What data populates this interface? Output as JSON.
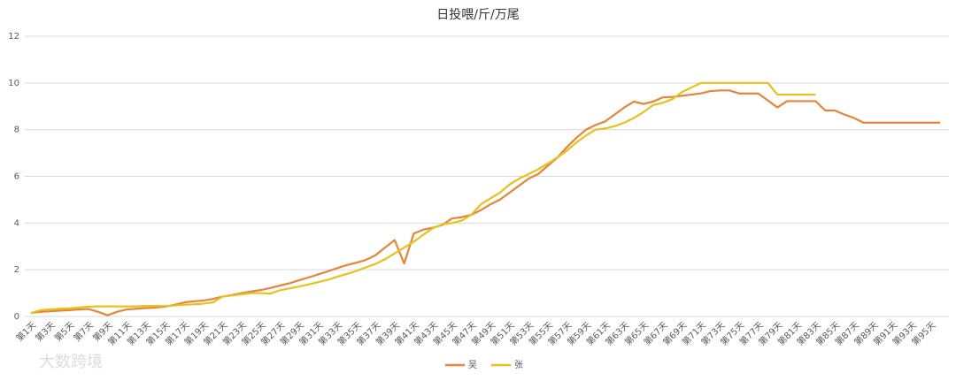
{
  "chart_data": {
    "type": "line",
    "title": "日投喂/斤/万尾",
    "categories": [
      "第1天",
      null,
      "第3天",
      null,
      "第5天",
      null,
      "第7天",
      null,
      "第9天",
      null,
      "第11天",
      null,
      "第13天",
      null,
      "第15天",
      null,
      "第17天",
      null,
      "第19天",
      null,
      "第21天",
      null,
      "第23天",
      null,
      "第25天",
      null,
      "第27天",
      null,
      "第29天",
      null,
      "第31天",
      null,
      "第33天",
      null,
      "第35天",
      null,
      "第37天",
      null,
      "第39天",
      null,
      "第41天",
      null,
      "第43天",
      null,
      "第45天",
      null,
      "第47天",
      null,
      "第49天",
      null,
      "第51天",
      null,
      "第53天",
      null,
      "第55天",
      null,
      "第57天",
      null,
      "第59天",
      null,
      "第61天",
      null,
      "第63天",
      null,
      "第65天",
      null,
      "第67天",
      null,
      "第69天",
      null,
      "第71天",
      null,
      "第73天",
      null,
      "第75天",
      null,
      "第77天",
      null,
      "第79天",
      null,
      "第81天",
      null,
      "第83天",
      null,
      "第85天",
      null,
      "第87天",
      null,
      "第89天",
      null,
      "第91天",
      null,
      "第93天",
      null,
      "第95天",
      null
    ],
    "series": [
      {
        "name": "吴",
        "color": "#e8843a",
        "values": [
          0.15,
          0.2,
          0.22,
          0.25,
          0.27,
          0.3,
          0.32,
          0.2,
          0.05,
          0.2,
          0.3,
          0.33,
          0.36,
          0.38,
          0.42,
          0.5,
          0.6,
          0.65,
          0.68,
          0.75,
          0.85,
          0.92,
          1.0,
          1.07,
          1.13,
          1.22,
          1.32,
          1.42,
          1.55,
          1.67,
          1.8,
          1.93,
          2.07,
          2.2,
          2.3,
          2.42,
          2.62,
          2.95,
          3.27,
          2.27,
          3.55,
          3.72,
          3.8,
          3.92,
          4.2,
          4.25,
          4.35,
          4.55,
          4.8,
          5.0,
          5.3,
          5.6,
          5.9,
          6.1,
          6.45,
          6.8,
          7.25,
          7.65,
          8.0,
          8.2,
          8.35,
          8.65,
          8.95,
          9.2,
          9.1,
          9.2,
          9.38,
          9.4,
          9.45,
          9.5,
          9.55,
          9.65,
          9.68,
          9.68,
          9.55,
          9.55,
          9.55,
          9.25,
          8.95,
          9.22,
          9.22,
          9.22,
          9.22,
          8.82,
          8.82,
          8.65,
          8.5,
          8.3,
          8.3,
          8.3,
          8.3,
          8.3,
          8.3,
          8.3,
          8.3,
          8.3
        ]
      },
      {
        "name": "张",
        "color": "#e6c21a",
        "values": [
          0.15,
          0.27,
          0.3,
          0.33,
          0.35,
          0.38,
          0.42,
          0.43,
          0.43,
          0.43,
          0.43,
          0.43,
          0.45,
          0.45,
          0.45,
          0.47,
          0.5,
          0.52,
          0.55,
          0.6,
          0.85,
          0.9,
          0.95,
          1.0,
          1.0,
          0.98,
          1.12,
          1.2,
          1.28,
          1.37,
          1.47,
          1.57,
          1.7,
          1.82,
          1.95,
          2.1,
          2.25,
          2.45,
          2.7,
          2.95,
          3.2,
          3.5,
          3.78,
          3.95,
          4.0,
          4.1,
          4.35,
          4.8,
          5.05,
          5.3,
          5.65,
          5.9,
          6.1,
          6.3,
          6.55,
          6.8,
          7.1,
          7.45,
          7.75,
          8.0,
          8.05,
          8.15,
          8.3,
          8.5,
          8.75,
          9.05,
          9.15,
          9.3,
          9.6,
          9.8,
          10,
          10,
          10,
          10,
          10,
          10,
          10,
          10,
          9.5,
          9.5,
          9.5,
          9.5,
          9.5,
          null,
          null,
          null,
          null,
          null,
          null,
          null,
          null,
          null,
          null,
          null,
          null,
          null
        ]
      }
    ],
    "ylim": [
      0,
      12
    ],
    "yticks": [
      0,
      2,
      4,
      6,
      8,
      10,
      12
    ],
    "grid": true,
    "legend": "bottom",
    "watermark": "大数跨境"
  }
}
